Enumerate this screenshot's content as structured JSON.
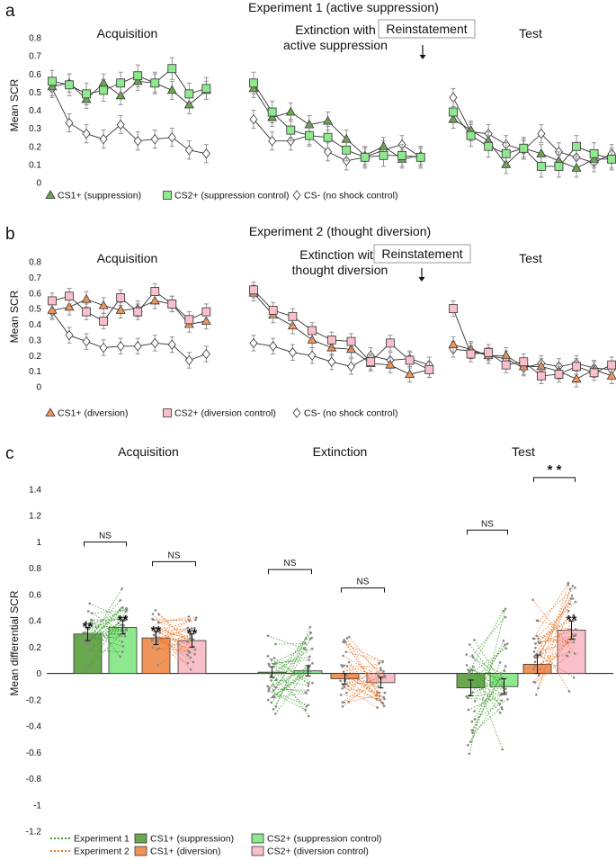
{
  "colors": {
    "cs1_supp_fill": "#6aa84f",
    "cs2_supp_fill": "#8ee88e",
    "cs1_div_fill": "#f0955a",
    "cs2_div_fill": "#f9c0cb",
    "csminus_fill": "#ffffff",
    "exp1_line": "#3e9a2e",
    "exp2_line": "#e8782a",
    "err": "#888888",
    "ink": "#111111"
  },
  "chart_data": [
    {
      "id": "a",
      "panel_label": "a",
      "type": "line",
      "title": "Experiment 1 (active suppression)",
      "ylabel": "Mean SCR",
      "ylim": [
        0,
        0.8
      ],
      "yticks": [
        "0",
        "0.1",
        "0.2",
        "0.3",
        "0.4",
        "0.5",
        "0.6",
        "0.7",
        "0.8"
      ],
      "section_titles": [
        "Acquisition",
        "Extinction with\nactive suppression",
        "Test"
      ],
      "reinstatement_label": "Reinstatement",
      "legend": [
        "CS1+ (suppression)",
        "CS2+ (suppression control)",
        "CS- (no shock control)"
      ],
      "series": [
        {
          "name": "CS1+ (suppression)",
          "marker": "triangle",
          "fill_key": "cs1_supp_fill",
          "phases": [
            [
              0.53,
              0.55,
              0.46,
              0.55,
              0.48,
              0.56,
              0.55,
              0.51,
              0.43,
              0.51
            ],
            [
              0.52,
              0.36,
              0.39,
              0.32,
              0.34,
              0.24,
              0.15,
              0.2,
              0.13,
              0.15
            ],
            [
              0.35,
              0.29,
              0.23,
              0.1,
              0.19,
              0.16,
              0.12,
              0.08,
              0.13,
              0.13
            ]
          ],
          "err": [
            0.05,
            0.05,
            0.05,
            0.05,
            0.05,
            0.05,
            0.05,
            0.05,
            0.05,
            0.05
          ]
        },
        {
          "name": "CS2+ (suppression control)",
          "marker": "square",
          "fill_key": "cs2_supp_fill",
          "phases": [
            [
              0.56,
              0.54,
              0.49,
              0.51,
              0.55,
              0.59,
              0.55,
              0.63,
              0.49,
              0.52
            ],
            [
              0.55,
              0.39,
              0.29,
              0.26,
              0.25,
              0.18,
              0.14,
              0.15,
              0.15,
              0.14
            ],
            [
              0.39,
              0.26,
              0.2,
              0.16,
              0.19,
              0.09,
              0.09,
              0.2,
              0.16,
              0.13
            ]
          ],
          "err": [
            0.06,
            0.06,
            0.06,
            0.06,
            0.06,
            0.06,
            0.06,
            0.06,
            0.06,
            0.06
          ]
        },
        {
          "name": "CS- (no shock control)",
          "marker": "diamond",
          "fill_key": "csminus_fill",
          "phases": [
            [
              0.52,
              0.33,
              0.27,
              0.24,
              0.32,
              0.23,
              0.24,
              0.25,
              0.18,
              0.16
            ],
            [
              0.35,
              0.23,
              0.23,
              0.26,
              0.17,
              0.12,
              0.14,
              0.18,
              0.21,
              0.14
            ],
            [
              0.47,
              0.28,
              0.27,
              0.21,
              0.18,
              0.27,
              0.17,
              0.14,
              0.11,
              0.16
            ]
          ],
          "err": [
            0.05,
            0.05,
            0.05,
            0.05,
            0.05,
            0.05,
            0.05,
            0.05,
            0.05,
            0.05
          ]
        }
      ]
    },
    {
      "id": "b",
      "panel_label": "b",
      "type": "line",
      "title": "Experiment 2 (thought diversion)",
      "ylabel": "Mean SCR",
      "ylim": [
        0,
        0.8
      ],
      "yticks": [
        "0",
        "0.1",
        "0.2",
        "0.3",
        "0.4",
        "0.5",
        "0.6",
        "0.7",
        "0.8"
      ],
      "section_titles": [
        "Acquisition",
        "Extinction with\nthought  diversion",
        "Test"
      ],
      "reinstatement_label": "Reinstatement",
      "legend": [
        "CS1+ (diversion)",
        "CS2+ (diversion control)",
        "CS- (no shock control)"
      ],
      "series": [
        {
          "name": "CS1+ (diversion)",
          "marker": "triangle",
          "fill_key": "cs1_div_fill",
          "phases": [
            [
              0.49,
              0.51,
              0.56,
              0.52,
              0.49,
              0.5,
              0.55,
              0.53,
              0.4,
              0.42
            ],
            [
              0.6,
              0.46,
              0.39,
              0.3,
              0.25,
              0.24,
              0.15,
              0.14,
              0.08,
              0.11
            ],
            [
              0.27,
              0.24,
              0.2,
              0.2,
              0.13,
              0.13,
              0.1,
              0.05,
              0.11,
              0.07
            ]
          ],
          "err": [
            0.05,
            0.05,
            0.05,
            0.05,
            0.05,
            0.05,
            0.05,
            0.05,
            0.05,
            0.05
          ]
        },
        {
          "name": "CS2+ (diversion control)",
          "marker": "square",
          "fill_key": "cs2_div_fill",
          "phases": [
            [
              0.55,
              0.58,
              0.48,
              0.42,
              0.57,
              0.48,
              0.61,
              0.53,
              0.43,
              0.48
            ],
            [
              0.62,
              0.49,
              0.45,
              0.36,
              0.3,
              0.29,
              0.16,
              0.28,
              0.17,
              0.11
            ],
            [
              0.5,
              0.21,
              0.22,
              0.14,
              0.16,
              0.07,
              0.08,
              0.13,
              0.09,
              0.14
            ]
          ],
          "err": [
            0.05,
            0.05,
            0.05,
            0.05,
            0.05,
            0.05,
            0.05,
            0.05,
            0.05,
            0.05
          ]
        },
        {
          "name": "CS- (no shock control)",
          "marker": "diamond",
          "fill_key": "csminus_fill",
          "phases": [
            [
              0.48,
              0.33,
              0.29,
              0.25,
              0.26,
              0.26,
              0.28,
              0.27,
              0.17,
              0.21
            ],
            [
              0.28,
              0.26,
              0.22,
              0.2,
              0.16,
              0.13,
              0.2,
              0.17,
              0.18,
              0.14
            ],
            [
              0.24,
              0.23,
              0.2,
              0.18,
              0.12,
              0.15,
              0.13,
              0.15,
              0.12,
              0.11
            ]
          ],
          "err": [
            0.05,
            0.05,
            0.05,
            0.05,
            0.05,
            0.05,
            0.05,
            0.05,
            0.05,
            0.05
          ]
        }
      ]
    },
    {
      "id": "c",
      "panel_label": "c",
      "type": "bar",
      "ylabel": "Mean differential  SCR",
      "ylim": [
        -1.2,
        1.4
      ],
      "yticks": [
        "-1.2",
        "-1",
        "-0.8",
        "-0.6",
        "-0.4",
        "-0.2",
        "0",
        "0.2",
        "0.4",
        "0.6",
        "0.8",
        "1",
        "1.2",
        "1.4"
      ],
      "section_titles": [
        "Acquisition",
        "Extinction",
        "Test"
      ],
      "ns_label": "NS",
      "sig_mark": "* *",
      "star_mark": "**",
      "groups": [
        {
          "phase": "Acquisition",
          "experiment": 1,
          "values": [
            0.3,
            0.35
          ],
          "err": [
            0.05,
            0.05
          ],
          "stars": [
            true,
            true
          ],
          "bracket": "NS",
          "bracket_y": 1.0
        },
        {
          "phase": "Acquisition",
          "experiment": 2,
          "values": [
            0.27,
            0.25
          ],
          "err": [
            0.05,
            0.05
          ],
          "stars": [
            true,
            true
          ],
          "bracket": "NS",
          "bracket_y": 0.85
        },
        {
          "phase": "Extinction",
          "experiment": 1,
          "values": [
            0.01,
            0.02
          ],
          "err": [
            0.04,
            0.04
          ],
          "stars": [
            false,
            false
          ],
          "bracket": "NS",
          "bracket_y": 0.79
        },
        {
          "phase": "Extinction",
          "experiment": 2,
          "values": [
            -0.04,
            -0.07
          ],
          "err": [
            0.04,
            0.04
          ],
          "stars": [
            false,
            false
          ],
          "bracket": "NS",
          "bracket_y": 0.65
        },
        {
          "phase": "Test",
          "experiment": 1,
          "values": [
            -0.11,
            -0.1
          ],
          "err": [
            0.06,
            0.06
          ],
          "stars": [
            false,
            false
          ],
          "bracket": "NS",
          "bracket_y": 1.09
        },
        {
          "phase": "Test",
          "experiment": 2,
          "values": [
            0.07,
            0.33
          ],
          "err": [
            0.07,
            0.07
          ],
          "stars": [
            false,
            true
          ],
          "bracket": "* *",
          "bracket_y": 1.49
        }
      ],
      "legend": [
        {
          "label": "Experiment 1",
          "kind": "dots",
          "color_key": "exp1_line"
        },
        {
          "label": "CS1+ (suppression)",
          "kind": "box",
          "color_key": "cs1_supp_fill"
        },
        {
          "label": "CS2+ (suppression control)",
          "kind": "box",
          "color_key": "cs2_supp_fill"
        },
        {
          "label": "Experiment 2",
          "kind": "dots",
          "color_key": "exp2_line"
        },
        {
          "label": "CS1+ (diversion)",
          "kind": "box",
          "color_key": "cs1_div_fill"
        },
        {
          "label": "CS2+ (diversion control)",
          "kind": "box",
          "color_key": "cs2_div_fill"
        }
      ]
    }
  ]
}
